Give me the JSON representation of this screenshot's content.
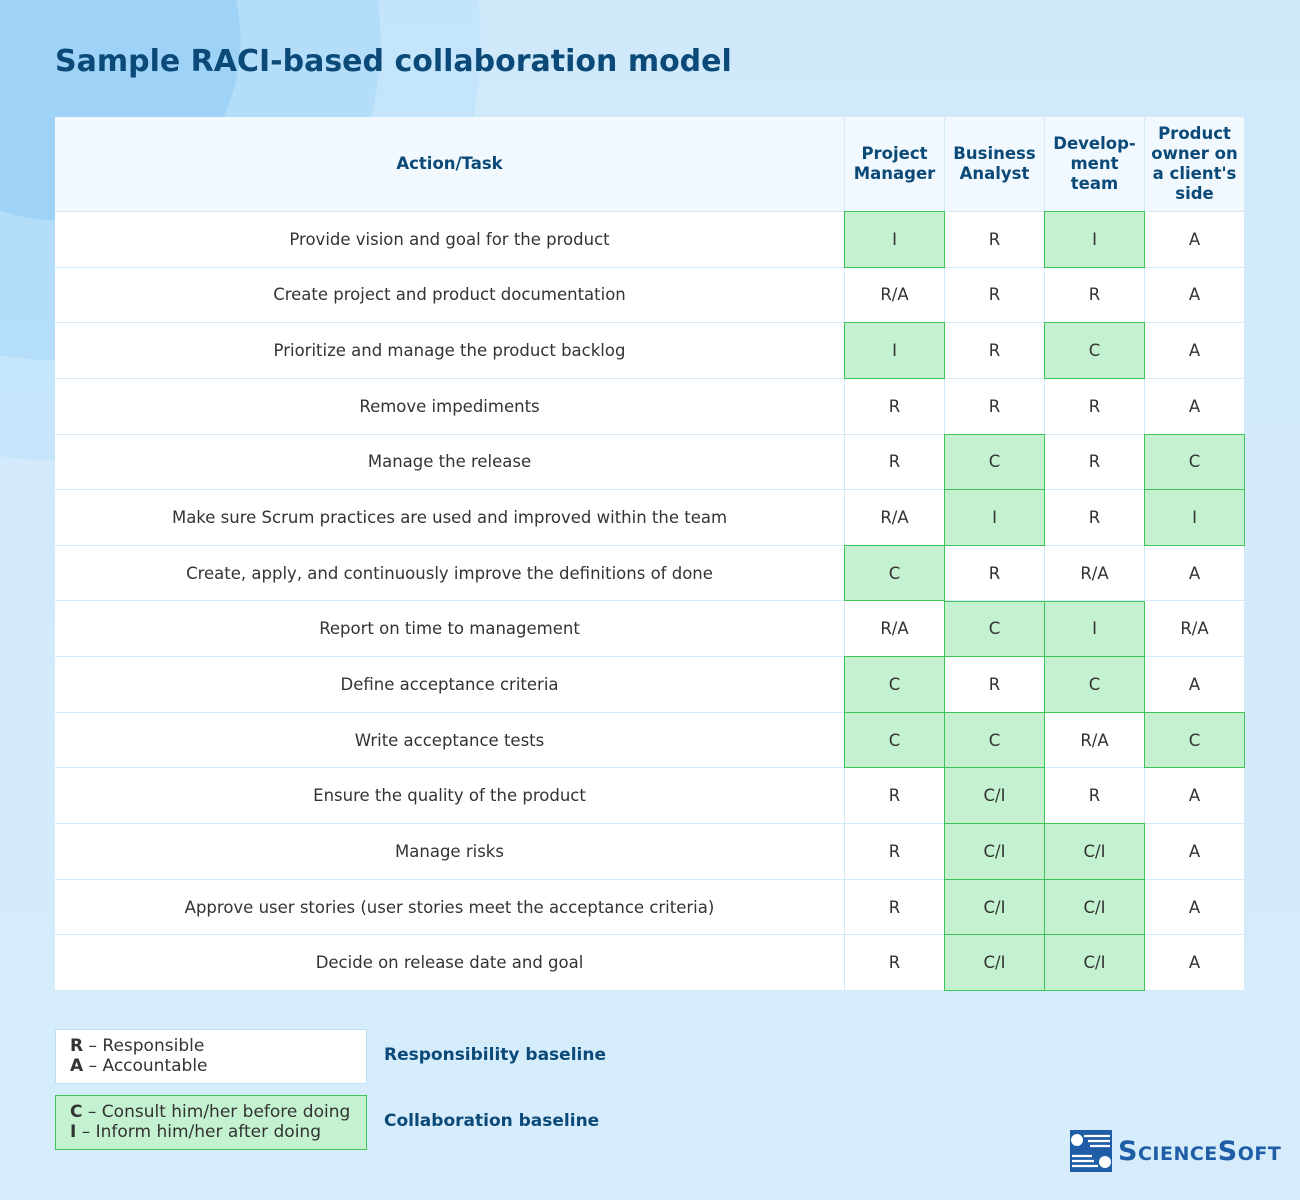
{
  "title": "Sample RACI-based collaboration model",
  "table": {
    "headers": [
      [
        "Action/Task"
      ],
      [
        "Project",
        "Manager"
      ],
      [
        "Business",
        "Analyst"
      ],
      [
        "Develop-",
        "ment",
        "team"
      ],
      [
        "Product",
        "owner on",
        "a client's",
        "side"
      ]
    ],
    "rows": [
      [
        "Provide vision and goal for the product",
        "I",
        "R",
        "I",
        "A"
      ],
      [
        "Create project and product documentation",
        "R/A",
        "R",
        "R",
        "A"
      ],
      [
        "Prioritize and manage the product backlog",
        "I",
        "R",
        "C",
        "A"
      ],
      [
        "Remove impediments",
        "R",
        "R",
        "R",
        "A"
      ],
      [
        "Manage the release",
        "R",
        "C",
        "R",
        "C"
      ],
      [
        "Make sure Scrum practices are used and improved within the team",
        "R/A",
        "I",
        "R",
        "I"
      ],
      [
        "Create, apply, and continuously improve the definitions of done",
        "C",
        "R",
        "R/A",
        "A"
      ],
      [
        "Report on time to management",
        "R/A",
        "C",
        "I",
        "R/A"
      ],
      [
        "Define acceptance criteria",
        "C",
        "R",
        "C",
        "A"
      ],
      [
        "Write acceptance tests",
        "C",
        "C",
        "R/A",
        "C"
      ],
      [
        "Ensure the quality of the product",
        "R",
        "C/I",
        "R",
        "A"
      ],
      [
        "Manage risks",
        "R",
        "C/I",
        "C/I",
        "A"
      ],
      [
        "Approve user stories (user stories meet the acceptance criteria)",
        "R",
        "C/I",
        "C/I",
        "A"
      ],
      [
        "Decide on release date and goal",
        "R",
        "C/I",
        "C/I",
        "A"
      ]
    ]
  },
  "legend": [
    {
      "items": [
        {
          "key": "R",
          "text": "– Responsible"
        },
        {
          "key": "A",
          "text": "– Accountable"
        }
      ],
      "label": "Responsibility baseline",
      "highlight": false
    },
    {
      "items": [
        {
          "key": "C",
          "text": "– Consult him/her before doing"
        },
        {
          "key": "I",
          "text": "– Inform him/her after doing"
        }
      ],
      "label": "Collaboration baseline",
      "highlight": true
    }
  ],
  "logo": "ScienceSoft"
}
